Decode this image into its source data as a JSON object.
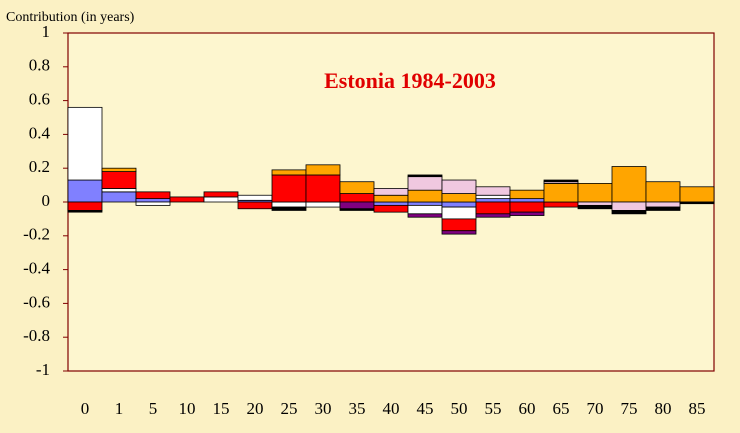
{
  "chart_data": {
    "type": "bar",
    "stacked": true,
    "title": "Estonia 1984-2003",
    "y_label": "Contribution (in years)",
    "categories": [
      "0",
      "1",
      "5",
      "10",
      "15",
      "20",
      "25",
      "30",
      "35",
      "40",
      "45",
      "50",
      "55",
      "60",
      "65",
      "70",
      "75",
      "80",
      "85"
    ],
    "series": [
      {
        "color": "#8080ff",
        "values": [
          0.13,
          0.06,
          0.02,
          0,
          0,
          0.01,
          0,
          0,
          0,
          -0.02,
          -0.02,
          -0.03,
          0.02,
          0.02,
          0,
          0,
          0,
          0,
          0
        ]
      },
      {
        "color": "#ffffff",
        "values": [
          0.43,
          0.02,
          -0.02,
          0,
          0.03,
          0.03,
          -0.03,
          -0.03,
          0,
          0,
          -0.05,
          -0.07,
          0.02,
          0,
          0,
          0,
          0,
          0,
          0
        ]
      },
      {
        "color": "#ff0000",
        "values": [
          -0.05,
          0.1,
          0.04,
          0.03,
          0.03,
          -0.04,
          0.16,
          0.16,
          0.05,
          -0.04,
          0,
          -0.07,
          -0.07,
          -0.06,
          -0.03,
          0,
          0,
          0,
          0
        ]
      },
      {
        "color": "#ffa500",
        "values": [
          0,
          0.02,
          0,
          0,
          0,
          0,
          0.03,
          0.06,
          0.07,
          0.04,
          0.07,
          0.05,
          0,
          0.05,
          0.11,
          0.11,
          0.21,
          0.12,
          0.09
        ]
      },
      {
        "color": "#f0c8e0",
        "values": [
          0,
          0,
          0,
          0,
          0,
          0,
          0,
          0,
          0,
          0.04,
          0.08,
          0.08,
          0.05,
          0,
          0.01,
          -0.02,
          -0.05,
          -0.03,
          0
        ]
      },
      {
        "color": "#800080",
        "values": [
          0,
          0,
          0,
          0,
          0,
          0,
          0,
          0,
          -0.04,
          0,
          -0.02,
          -0.02,
          -0.02,
          -0.02,
          0,
          0,
          0,
          0,
          0
        ]
      },
      {
        "color": "#000000",
        "values": [
          -0.01,
          0,
          0,
          0,
          0,
          0,
          -0.02,
          0,
          -0.01,
          0,
          0.01,
          0,
          0,
          0,
          0.01,
          -0.02,
          -0.02,
          -0.02,
          -0.01
        ]
      }
    ],
    "ylim": [
      -1,
      1
    ],
    "yticks": [
      -1,
      -0.8,
      -0.6,
      -0.4,
      -0.2,
      0,
      0.2,
      0.4,
      0.6,
      0.8,
      1
    ],
    "grid": false
  }
}
